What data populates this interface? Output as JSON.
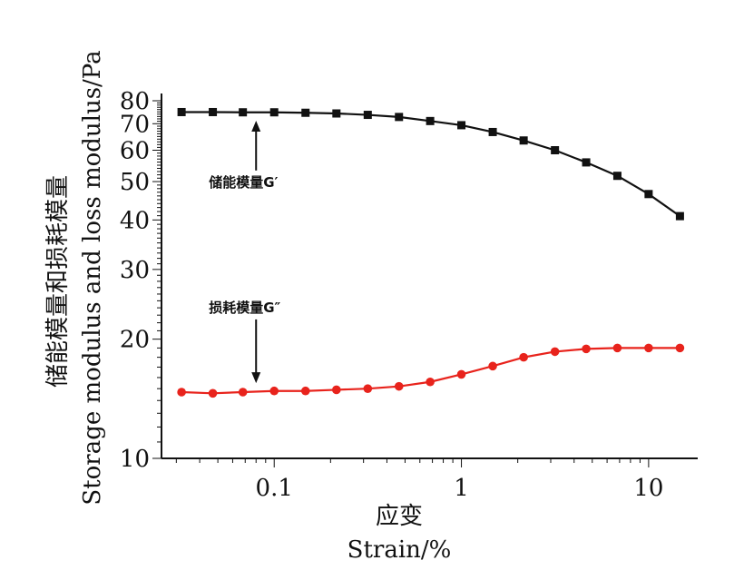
{
  "chart_data": {
    "type": "line",
    "xlabel_cn": "应变",
    "xlabel_en": "Strain/%",
    "ylabel_cn": "储能模量和损耗模量",
    "ylabel_en": "Storage modulus and loss modulus/Pa",
    "xscale": "log",
    "yscale": "log",
    "xlim": [
      0.025,
      16
    ],
    "ylim": [
      10,
      80
    ],
    "x_ticks": [
      {
        "value": 0.1,
        "label": "0.1"
      },
      {
        "value": 1,
        "label": "1"
      },
      {
        "value": 10,
        "label": "10"
      }
    ],
    "y_ticks": [
      {
        "value": 10,
        "label": "10"
      },
      {
        "value": 20,
        "label": "20"
      },
      {
        "value": 30,
        "label": "30"
      },
      {
        "value": 40,
        "label": "40"
      },
      {
        "value": 50,
        "label": "50"
      },
      {
        "value": 60,
        "label": "60"
      },
      {
        "value": 70,
        "label": "70"
      },
      {
        "value": 80,
        "label": "80"
      }
    ],
    "x": [
      0.032,
      0.047,
      0.068,
      0.1,
      0.147,
      0.215,
      0.316,
      0.464,
      0.681,
      1.0,
      1.47,
      2.15,
      3.16,
      4.64,
      6.81,
      10.0,
      14.7
    ],
    "series": [
      {
        "color": "#111111",
        "marker": "square",
        "values": [
          74.9,
          74.9,
          74.8,
          74.8,
          74.6,
          74.3,
          73.7,
          72.8,
          71.1,
          69.4,
          66.7,
          63.5,
          60.0,
          55.9,
          51.7,
          46.5,
          40.9
        ]
      },
      {
        "color": "#e8231c",
        "marker": "circle",
        "values": [
          14.7,
          14.6,
          14.7,
          14.8,
          14.8,
          14.9,
          15.0,
          15.2,
          15.6,
          16.3,
          17.1,
          18.0,
          18.6,
          18.9,
          19.0,
          19.0,
          19.0
        ]
      }
    ],
    "annotations": [
      {
        "text": "储能模量G′",
        "x": 0.08,
        "y": 48.5,
        "arrow_to_y": 73.5
      },
      {
        "text": "损耗模量G″",
        "x": 0.08,
        "y": 23.4,
        "arrow_to_y": 15.0
      }
    ]
  }
}
